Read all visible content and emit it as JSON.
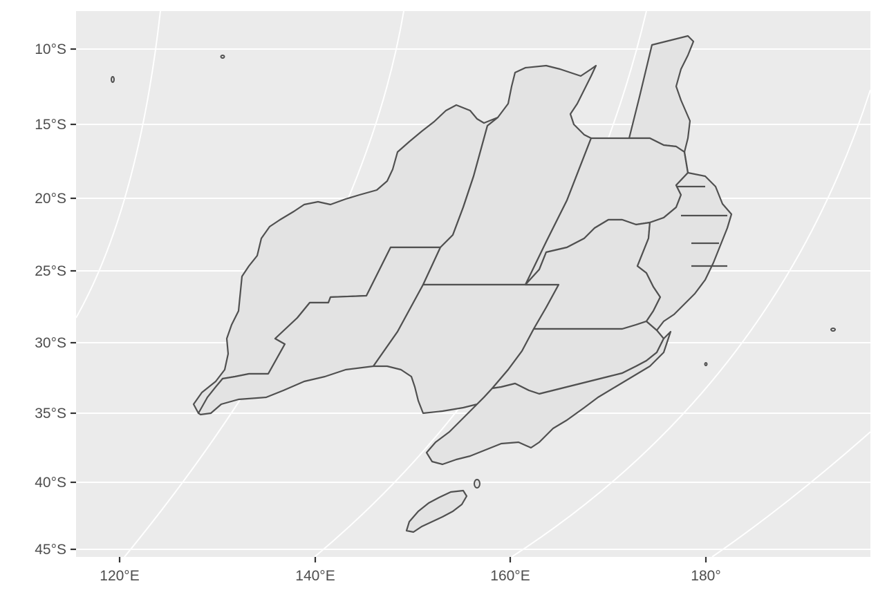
{
  "map": {
    "background_color": "#ebebeb",
    "land_fill": "#e3e3e3",
    "border_color": "#505050",
    "graticule_color": "#ffffff",
    "y_axis_labels": [
      "10°S",
      "15°S",
      "20°S",
      "25°S",
      "30°S",
      "35°S",
      "40°S",
      "45°S"
    ],
    "x_axis_labels": [
      "120°E",
      "140°E",
      "160°E",
      "180°"
    ]
  }
}
